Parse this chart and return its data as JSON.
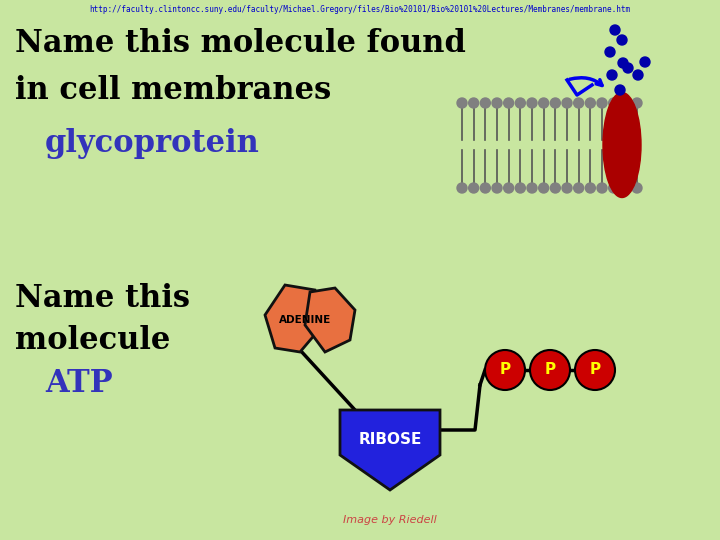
{
  "bg_color": "#c8e6a0",
  "url_text": "http://faculty.clintoncc.suny.edu/faculty/Michael.Gregory/files/Bio%20101/Bio%20101%20Lectures/Membranes/membrane.htm",
  "url_color": "#0000cc",
  "url_fontsize": 5.5,
  "title1": "Name this molecule found",
  "title2": "in cell membranes",
  "title_color": "#000000",
  "title_fontsize": 22,
  "answer1": "glycoprotein",
  "answer1_color": "#3333bb",
  "answer1_fontsize": 22,
  "title3_line1": "Name this",
  "title3_line2": "molecule",
  "answer2": "ATP",
  "answer2_color": "#3333bb",
  "answer2_fontsize": 22,
  "footer": "Image by Riedell",
  "footer_color": "#cc4444",
  "footer_fontsize": 8,
  "adenine_color": "#e87040",
  "adenine_outline": "#000000",
  "adenine_label": "ADENINE",
  "ribose_color": "#2222dd",
  "ribose_label": "RIBOSE",
  "ribose_label_color": "#ffffff",
  "p_color": "#cc0000",
  "p_label": "P",
  "p_label_color": "#ffff00",
  "membrane_head_color": "#808080",
  "membrane_tail_color": "#555555",
  "protein_color": "#aa0000",
  "chain_color": "#0000aa",
  "arrow_color": "#0000ee"
}
